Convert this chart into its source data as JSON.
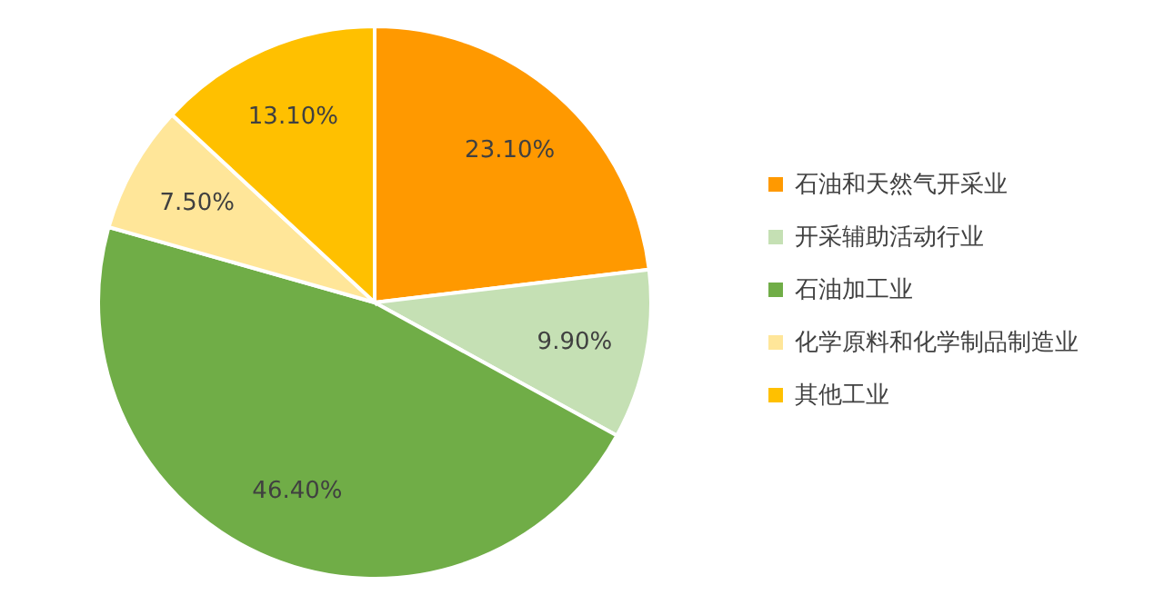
{
  "chart_data": {
    "type": "pie",
    "categories": [
      "石油和天然气开采业",
      "开采辅助活动行业",
      "石油加工业",
      "化学原料和化学制品制造业",
      "其他工业"
    ],
    "values": [
      23.1,
      9.9,
      46.4,
      7.5,
      13.1
    ],
    "colors": [
      "#ff9900",
      "#c5e0b4",
      "#70ad47",
      "#ffe699",
      "#ffc000"
    ],
    "value_labels": [
      "23.10%",
      "9.90%",
      "46.40%",
      "7.50%",
      "13.10%"
    ],
    "legend": "right"
  }
}
